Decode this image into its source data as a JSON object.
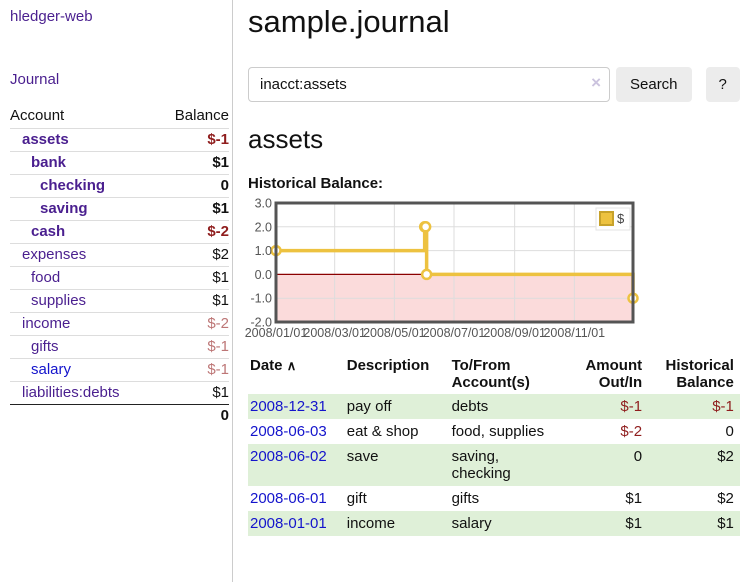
{
  "app": {
    "brand": "hledger-web"
  },
  "sidebar": {
    "nav": {
      "journal_label": "Journal"
    },
    "accounts_table": {
      "headers": {
        "account": "Account",
        "balance": "Balance"
      },
      "rows": [
        {
          "name": "assets",
          "depth": 1,
          "matched": true,
          "balance": "$-1",
          "negative": "strong"
        },
        {
          "name": "bank",
          "depth": 2,
          "matched": true,
          "balance": "$1",
          "negative": "none"
        },
        {
          "name": "checking",
          "depth": 3,
          "matched": true,
          "balance": "0",
          "negative": "none"
        },
        {
          "name": "saving",
          "depth": 3,
          "matched": true,
          "balance": "$1",
          "negative": "none"
        },
        {
          "name": "cash",
          "depth": 2,
          "matched": true,
          "balance": "$-2",
          "negative": "strong"
        },
        {
          "name": "expenses",
          "depth": 1,
          "matched": false,
          "balance": "$2",
          "negative": "none"
        },
        {
          "name": "food",
          "depth": 2,
          "matched": false,
          "balance": "$1",
          "negative": "none"
        },
        {
          "name": "supplies",
          "depth": 2,
          "matched": false,
          "balance": "$1",
          "negative": "none"
        },
        {
          "name": "income",
          "depth": 1,
          "matched": false,
          "balance": "$-2",
          "negative": "soft"
        },
        {
          "name": "gifts",
          "depth": 2,
          "matched": false,
          "balance": "$-1",
          "negative": "soft"
        },
        {
          "name": "salary",
          "depth": 2,
          "matched": false,
          "balance": "$-1",
          "negative": "soft",
          "link_style": "blue"
        },
        {
          "name": "liabilities:debts",
          "depth": 1,
          "matched": false,
          "balance": "$1",
          "negative": "none"
        }
      ],
      "total": "0"
    }
  },
  "header": {
    "title": "sample.journal"
  },
  "search": {
    "query": "inacct:assets",
    "clear_icon": "×",
    "search_label": "Search",
    "help_label": "?"
  },
  "account_page": {
    "title": "assets",
    "chart_label": "Historical Balance:"
  },
  "chart_data": {
    "type": "line",
    "step": true,
    "series": [
      {
        "name": "$",
        "color": "#edc240",
        "points": [
          [
            "2008-01-01",
            1
          ],
          [
            "2008-06-01",
            2
          ],
          [
            "2008-06-02",
            2
          ],
          [
            "2008-06-03",
            0
          ],
          [
            "2008-12-31",
            -1
          ]
        ]
      }
    ],
    "x_ticks": [
      "2008/01/01",
      "2008/03/01",
      "2008/05/01",
      "2008/07/01",
      "2008/09/01",
      "2008/11/01"
    ],
    "y_ticks": [
      "3.0",
      "2.0",
      "1.0",
      "0.0",
      "-1.0",
      "-2.0"
    ],
    "ylim": [
      -2,
      3
    ],
    "grid": true,
    "legend_position": "top-right",
    "colors": {
      "negative_region_fill": "#fbdbdb",
      "zero_line": "#8b0000",
      "grid": "#dddddd",
      "border": "#545454",
      "tick_text": "#555555",
      "marker_fill": "#ffffff",
      "legend_swatch_border": "#c7a22b",
      "legend_text": "#444444"
    }
  },
  "register_table": {
    "sort_icon": "∧",
    "columns": [
      {
        "label": "Date"
      },
      {
        "label": "Description"
      },
      {
        "label": "To/From Account(s)"
      },
      {
        "label": "Amount Out/In"
      },
      {
        "label": "Historical Balance"
      }
    ],
    "rows": [
      {
        "date": "2008-12-31",
        "description": "pay off",
        "accounts": "debts",
        "amount": "$-1",
        "amount_negative": true,
        "balance": "$-1",
        "balance_negative": true
      },
      {
        "date": "2008-06-03",
        "description": "eat & shop",
        "accounts": "food, supplies",
        "amount": "$-2",
        "amount_negative": true,
        "balance": "0",
        "balance_negative": false
      },
      {
        "date": "2008-06-02",
        "description": "save",
        "accounts": "saving, checking",
        "amount": "0",
        "amount_negative": false,
        "balance": "$2",
        "balance_negative": false
      },
      {
        "date": "2008-06-01",
        "description": "gift",
        "accounts": "gifts",
        "amount": "$1",
        "amount_negative": false,
        "balance": "$2",
        "balance_negative": false
      },
      {
        "date": "2008-01-01",
        "description": "income",
        "accounts": "salary",
        "amount": "$1",
        "amount_negative": false,
        "balance": "$1",
        "balance_negative": false
      }
    ]
  }
}
